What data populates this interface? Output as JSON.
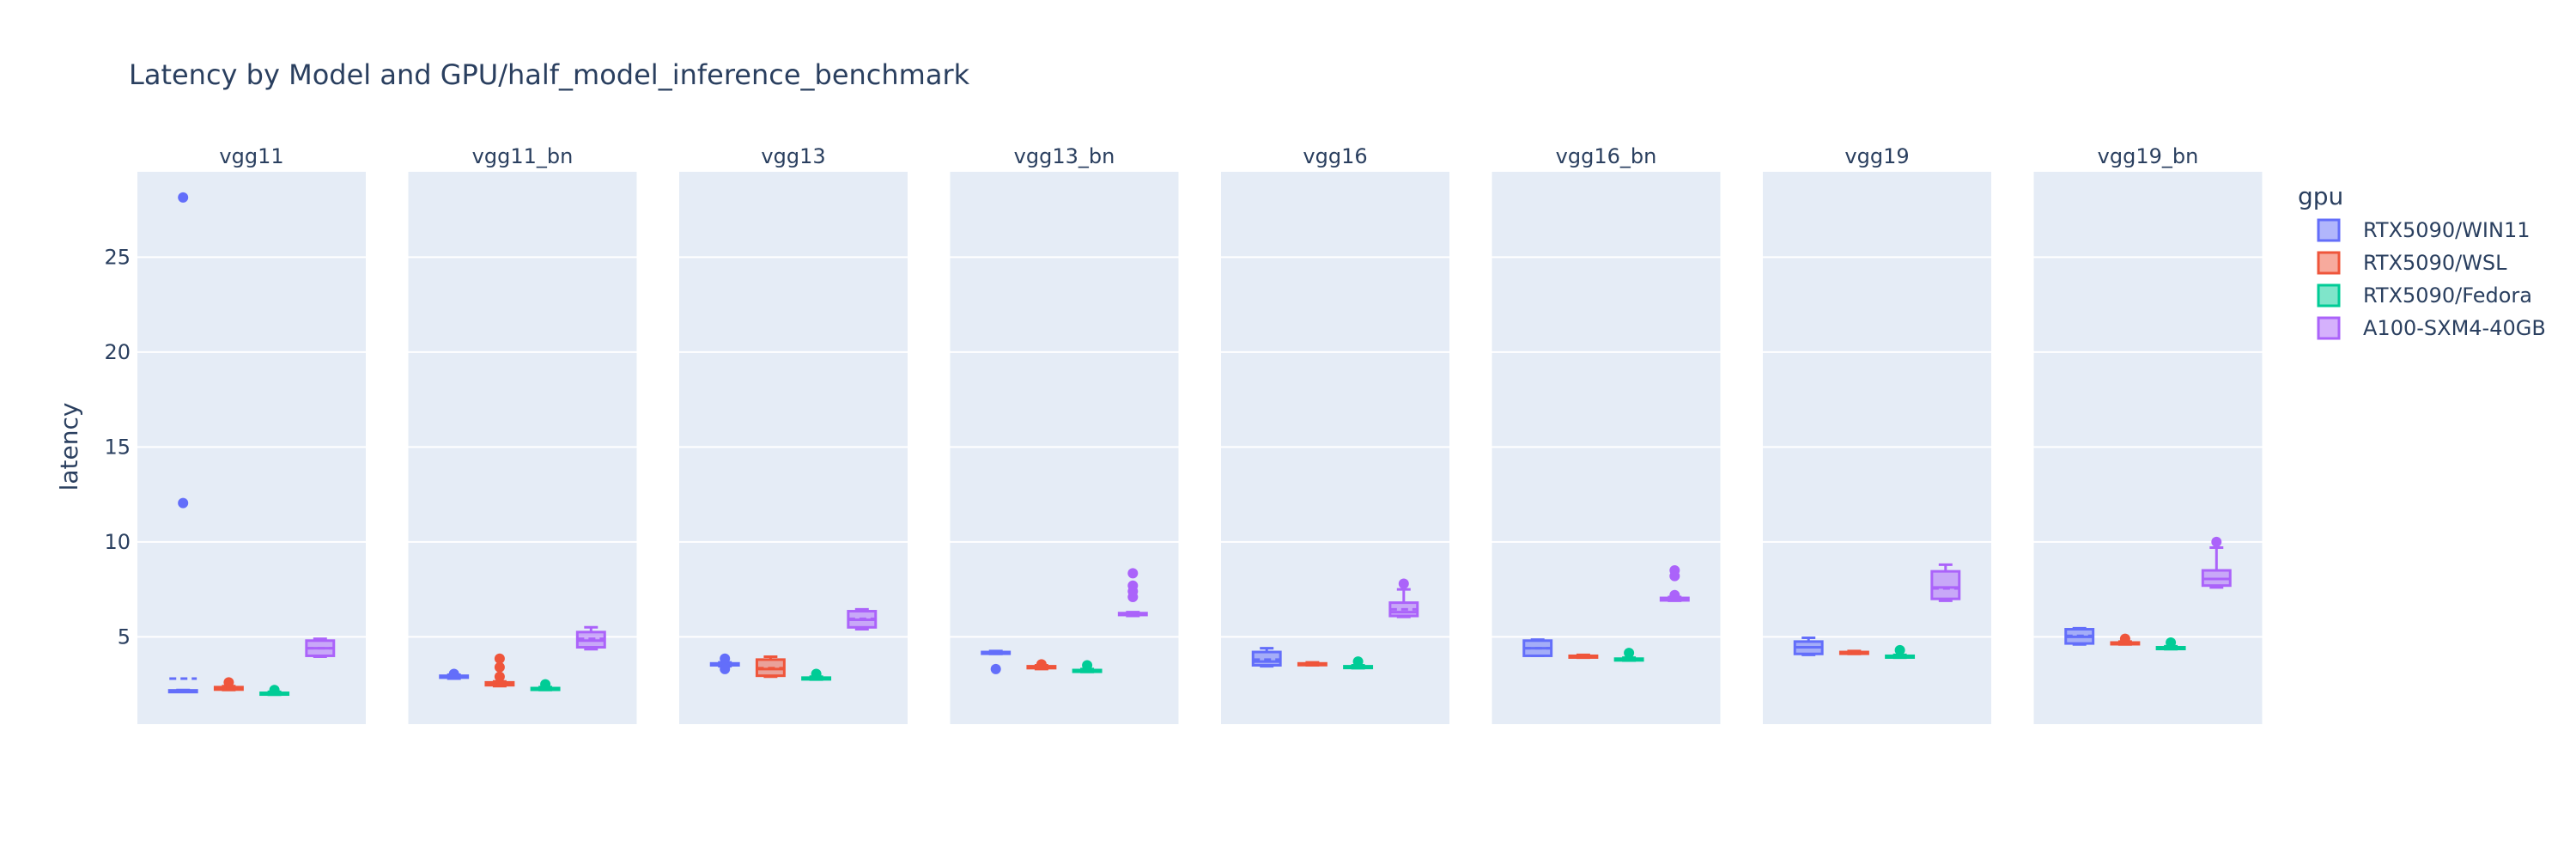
{
  "chart_data": {
    "type": "box",
    "title": "Latency by Model and GPU/half_model_inference_benchmark",
    "ylabel": "latency",
    "ylim": [
      0.4,
      29.5
    ],
    "yticks": [
      5,
      10,
      15,
      20,
      25
    ],
    "grid": true,
    "legend": {
      "title": "gpu",
      "placement": "right"
    },
    "panels": [
      "vgg11",
      "vgg11_bn",
      "vgg13",
      "vgg13_bn",
      "vgg16",
      "vgg16_bn",
      "vgg19",
      "vgg19_bn"
    ],
    "series": [
      {
        "name": "RTX5090/WIN11",
        "color": "#636efa",
        "boxes": [
          {
            "min": 2.1,
            "q1": 2.12,
            "median": 2.15,
            "q3": 2.18,
            "max": 2.2,
            "mean": 2.8,
            "outliers": [
              12.05,
              28.15
            ]
          },
          {
            "min": 2.8,
            "q1": 2.85,
            "median": 2.9,
            "q3": 2.95,
            "max": 3.0,
            "mean": 2.9,
            "outliers": [
              3.05
            ]
          },
          {
            "min": 3.45,
            "q1": 3.5,
            "median": 3.55,
            "q3": 3.6,
            "max": 3.65,
            "mean": 3.55,
            "outliers": [
              3.3,
              3.85
            ]
          },
          {
            "min": 4.1,
            "q1": 4.12,
            "median": 4.15,
            "q3": 4.2,
            "max": 4.25,
            "mean": 4.15,
            "outliers": [
              3.3
            ]
          },
          {
            "min": 3.45,
            "q1": 3.5,
            "median": 3.7,
            "q3": 4.2,
            "max": 4.4,
            "mean": 3.8,
            "outliers": []
          },
          {
            "min": 4.0,
            "q1": 4.0,
            "median": 4.4,
            "q3": 4.8,
            "max": 4.85,
            "mean": 4.4,
            "outliers": []
          },
          {
            "min": 4.05,
            "q1": 4.1,
            "median": 4.45,
            "q3": 4.75,
            "max": 4.95,
            "mean": 4.45,
            "outliers": []
          },
          {
            "min": 4.6,
            "q1": 4.65,
            "median": 5.0,
            "q3": 5.4,
            "max": 5.45,
            "mean": 5.05,
            "outliers": []
          }
        ]
      },
      {
        "name": "RTX5090/WSL",
        "color": "#ef553b",
        "boxes": [
          {
            "min": 2.2,
            "q1": 2.22,
            "median": 2.28,
            "q3": 2.35,
            "max": 2.4,
            "mean": 2.28,
            "outliers": [
              2.6
            ]
          },
          {
            "min": 2.4,
            "q1": 2.45,
            "median": 2.5,
            "q3": 2.6,
            "max": 2.65,
            "mean": 2.5,
            "outliers": [
              2.9,
              3.4,
              3.85
            ]
          },
          {
            "min": 2.9,
            "q1": 2.95,
            "median": 3.3,
            "q3": 3.8,
            "max": 3.95,
            "mean": 3.35,
            "outliers": []
          },
          {
            "min": 3.3,
            "q1": 3.35,
            "median": 3.4,
            "q3": 3.45,
            "max": 3.5,
            "mean": 3.4,
            "outliers": [
              3.55
            ]
          },
          {
            "min": 3.5,
            "q1": 3.52,
            "median": 3.55,
            "q3": 3.6,
            "max": 3.65,
            "mean": 3.55,
            "outliers": []
          },
          {
            "min": 3.9,
            "q1": 3.92,
            "median": 3.95,
            "q3": 4.0,
            "max": 4.05,
            "mean": 3.95,
            "outliers": []
          },
          {
            "min": 4.1,
            "q1": 4.12,
            "median": 4.15,
            "q3": 4.2,
            "max": 4.25,
            "mean": 4.15,
            "outliers": []
          },
          {
            "min": 4.6,
            "q1": 4.62,
            "median": 4.65,
            "q3": 4.7,
            "max": 4.75,
            "mean": 4.65,
            "outliers": [
              4.9
            ]
          }
        ]
      },
      {
        "name": "RTX5090/Fedora",
        "color": "#00cc96",
        "boxes": [
          {
            "min": 1.95,
            "q1": 1.98,
            "median": 2.0,
            "q3": 2.05,
            "max": 2.1,
            "mean": 2.0,
            "outliers": [
              2.2
            ]
          },
          {
            "min": 2.2,
            "q1": 2.22,
            "median": 2.25,
            "q3": 2.3,
            "max": 2.35,
            "mean": 2.25,
            "outliers": [
              2.5
            ]
          },
          {
            "min": 2.75,
            "q1": 2.78,
            "median": 2.8,
            "q3": 2.85,
            "max": 2.9,
            "mean": 2.8,
            "outliers": [
              3.05
            ]
          },
          {
            "min": 3.15,
            "q1": 3.18,
            "median": 3.2,
            "q3": 3.25,
            "max": 3.3,
            "mean": 3.2,
            "outliers": [
              3.5
            ]
          },
          {
            "min": 3.35,
            "q1": 3.38,
            "median": 3.4,
            "q3": 3.45,
            "max": 3.5,
            "mean": 3.4,
            "outliers": [
              3.7
            ]
          },
          {
            "min": 3.75,
            "q1": 3.78,
            "median": 3.8,
            "q3": 3.85,
            "max": 3.9,
            "mean": 3.8,
            "outliers": [
              4.15
            ]
          },
          {
            "min": 3.9,
            "q1": 3.92,
            "median": 3.95,
            "q3": 4.0,
            "max": 4.05,
            "mean": 3.95,
            "outliers": [
              4.3
            ]
          },
          {
            "min": 4.35,
            "q1": 4.38,
            "median": 4.4,
            "q3": 4.45,
            "max": 4.5,
            "mean": 4.4,
            "outliers": [
              4.7
            ]
          }
        ]
      },
      {
        "name": "A100-SXM4-40GB",
        "color": "#ab63fa",
        "boxes": [
          {
            "min": 3.95,
            "q1": 4.0,
            "median": 4.4,
            "q3": 4.8,
            "max": 4.9,
            "mean": 4.4,
            "outliers": []
          },
          {
            "min": 4.35,
            "q1": 4.45,
            "median": 4.8,
            "q3": 5.25,
            "max": 5.5,
            "mean": 4.9,
            "outliers": []
          },
          {
            "min": 5.4,
            "q1": 5.5,
            "median": 5.9,
            "q3": 6.35,
            "max": 6.45,
            "mean": 5.95,
            "outliers": []
          },
          {
            "min": 6.1,
            "q1": 6.15,
            "median": 6.2,
            "q3": 6.25,
            "max": 6.3,
            "mean": 6.2,
            "outliers": [
              7.1,
              7.4,
              7.7,
              8.35
            ]
          },
          {
            "min": 6.05,
            "q1": 6.1,
            "median": 6.3,
            "q3": 6.8,
            "max": 7.5,
            "mean": 6.45,
            "outliers": [
              7.8
            ]
          },
          {
            "min": 6.9,
            "q1": 6.92,
            "median": 7.0,
            "q3": 7.05,
            "max": 7.1,
            "mean": 7.0,
            "outliers": [
              7.2,
              8.2,
              8.5
            ]
          },
          {
            "min": 6.9,
            "q1": 7.0,
            "median": 7.6,
            "q3": 8.45,
            "max": 8.8,
            "mean": 7.55,
            "outliers": []
          },
          {
            "min": 7.6,
            "q1": 7.7,
            "median": 8.05,
            "q3": 8.5,
            "max": 9.7,
            "mean": 8.05,
            "outliers": [
              10.0
            ]
          }
        ]
      }
    ]
  }
}
